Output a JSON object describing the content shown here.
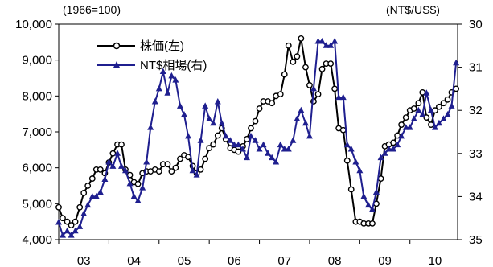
{
  "units": {
    "left": "(1966=100)",
    "right": "(NT$/US$)"
  },
  "chart_data": {
    "type": "line",
    "title": "",
    "x_tick_labels": [
      "03",
      "04",
      "05",
      "06",
      "07",
      "08",
      "09",
      "10"
    ],
    "x_range": [
      2003.0,
      2010.95
    ],
    "y_left": {
      "ylim": [
        4000,
        10000
      ],
      "ticks": [
        4000,
        5000,
        6000,
        7000,
        8000,
        9000,
        10000
      ],
      "tick_labels": [
        "4,000",
        "5,000",
        "6,000",
        "7,000",
        "8,000",
        "9,000",
        "10,000"
      ]
    },
    "y_right": {
      "ylim": [
        30,
        35
      ],
      "inverted": true,
      "ticks": [
        30,
        31,
        32,
        33,
        34,
        35
      ],
      "tick_labels": [
        "30",
        "31",
        "32",
        "33",
        "34",
        "35"
      ]
    },
    "grid": false,
    "legend_position": "top-left",
    "series": [
      {
        "name": "株価(左)",
        "axis": "left",
        "color": "#000000",
        "marker": "circle",
        "x": [
          2003.0,
          2003.08,
          2003.17,
          2003.25,
          2003.33,
          2003.42,
          2003.5,
          2003.58,
          2003.67,
          2003.75,
          2003.83,
          2003.92,
          2004.0,
          2004.08,
          2004.17,
          2004.25,
          2004.33,
          2004.42,
          2004.5,
          2004.58,
          2004.67,
          2004.75,
          2004.83,
          2004.92,
          2005.0,
          2005.08,
          2005.17,
          2005.25,
          2005.33,
          2005.42,
          2005.5,
          2005.58,
          2005.67,
          2005.75,
          2005.83,
          2005.92,
          2006.0,
          2006.08,
          2006.17,
          2006.25,
          2006.33,
          2006.42,
          2006.5,
          2006.58,
          2006.67,
          2006.75,
          2006.83,
          2006.92,
          2007.0,
          2007.08,
          2007.17,
          2007.25,
          2007.33,
          2007.42,
          2007.5,
          2007.58,
          2007.67,
          2007.75,
          2007.83,
          2007.92,
          2008.0,
          2008.08,
          2008.17,
          2008.25,
          2008.33,
          2008.42,
          2008.5,
          2008.58,
          2008.67,
          2008.75,
          2008.83,
          2008.92,
          2009.0,
          2009.08,
          2009.17,
          2009.25,
          2009.33,
          2009.42,
          2009.5,
          2009.58,
          2009.67,
          2009.75,
          2009.83,
          2009.92,
          2010.0,
          2010.08,
          2010.17,
          2010.25,
          2010.33,
          2010.42,
          2010.5,
          2010.58,
          2010.67,
          2010.75,
          2010.83,
          2010.92
        ],
        "values": [
          4900,
          4600,
          4500,
          4400,
          4500,
          4900,
          5300,
          5500,
          5700,
          5950,
          5950,
          5850,
          6150,
          6400,
          6650,
          6650,
          5950,
          5800,
          5600,
          5550,
          5850,
          5900,
          5900,
          5950,
          5900,
          6100,
          6100,
          5900,
          6000,
          6250,
          6350,
          6300,
          6050,
          5850,
          5950,
          6250,
          6550,
          6650,
          6900,
          7100,
          6800,
          6550,
          6500,
          6450,
          6600,
          6800,
          7100,
          7300,
          7650,
          7850,
          7850,
          7800,
          8000,
          8050,
          8600,
          9400,
          8950,
          9100,
          9600,
          8800,
          8300,
          7850,
          8050,
          8750,
          8900,
          8900,
          8200,
          7100,
          7050,
          6200,
          5400,
          4500,
          4500,
          4450,
          4450,
          4450,
          5000,
          5700,
          6600,
          6650,
          6700,
          6900,
          7200,
          7400,
          7600,
          7650,
          7800,
          8100,
          7400,
          7200,
          7600,
          7700,
          7800,
          7900,
          8100,
          8200
        ]
      },
      {
        "name": "NT$相場(右)",
        "axis": "right",
        "color": "#1f1f8f",
        "marker": "triangle",
        "x": [
          2003.0,
          2003.08,
          2003.17,
          2003.25,
          2003.33,
          2003.42,
          2003.5,
          2003.58,
          2003.67,
          2003.75,
          2003.83,
          2003.92,
          2004.0,
          2004.08,
          2004.17,
          2004.25,
          2004.33,
          2004.42,
          2004.5,
          2004.58,
          2004.67,
          2004.75,
          2004.83,
          2004.92,
          2005.0,
          2005.08,
          2005.17,
          2005.25,
          2005.33,
          2005.42,
          2005.5,
          2005.58,
          2005.67,
          2005.75,
          2005.83,
          2005.92,
          2006.0,
          2006.08,
          2006.17,
          2006.25,
          2006.33,
          2006.42,
          2006.5,
          2006.58,
          2006.67,
          2006.75,
          2006.83,
          2006.92,
          2007.0,
          2007.08,
          2007.17,
          2007.25,
          2007.33,
          2007.42,
          2007.5,
          2007.58,
          2007.67,
          2007.75,
          2007.83,
          2007.92,
          2008.0,
          2008.08,
          2008.17,
          2008.25,
          2008.33,
          2008.42,
          2008.5,
          2008.58,
          2008.67,
          2008.75,
          2008.83,
          2008.92,
          2009.0,
          2009.08,
          2009.17,
          2009.25,
          2009.33,
          2009.42,
          2009.5,
          2009.58,
          2009.67,
          2009.75,
          2009.83,
          2009.92,
          2010.0,
          2010.08,
          2010.17,
          2010.25,
          2010.33,
          2010.42,
          2010.5,
          2010.58,
          2010.67,
          2010.75,
          2010.83,
          2010.92
        ],
        "values": [
          34.6,
          34.9,
          34.8,
          34.9,
          34.8,
          34.7,
          34.4,
          34.2,
          34.0,
          34.0,
          33.9,
          33.6,
          33.2,
          33.3,
          33.0,
          33.3,
          33.4,
          33.7,
          34.0,
          34.1,
          33.8,
          33.2,
          32.4,
          31.8,
          31.5,
          31.1,
          31.6,
          31.2,
          31.3,
          31.9,
          32.1,
          32.6,
          33.4,
          33.5,
          32.7,
          31.9,
          32.2,
          32.3,
          31.8,
          32.3,
          32.6,
          32.7,
          32.8,
          32.8,
          32.9,
          33.1,
          32.6,
          32.7,
          32.9,
          32.8,
          33.0,
          33.1,
          33.2,
          32.8,
          32.9,
          32.9,
          32.7,
          32.2,
          32.0,
          32.3,
          32.6,
          31.5,
          30.4,
          30.4,
          30.5,
          30.5,
          30.4,
          31.7,
          31.7,
          32.8,
          32.9,
          33.2,
          33.4,
          34.0,
          34.2,
          34.3,
          33.9,
          33.1,
          33.0,
          32.9,
          32.9,
          32.8,
          32.6,
          32.4,
          32.4,
          32.2,
          32.0,
          32.1,
          31.6,
          32.0,
          32.4,
          32.3,
          32.2,
          32.1,
          31.9,
          30.9
        ]
      }
    ]
  }
}
